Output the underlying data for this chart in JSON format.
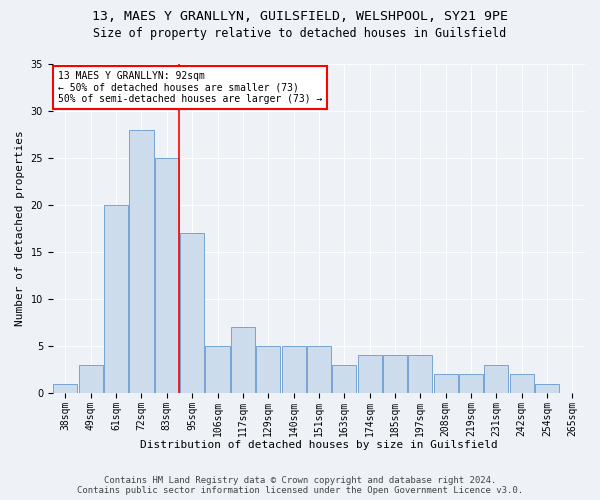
{
  "title1": "13, MAES Y GRANLLYN, GUILSFIELD, WELSHPOOL, SY21 9PE",
  "title2": "Size of property relative to detached houses in Guilsfield",
  "xlabel": "Distribution of detached houses by size in Guilsfield",
  "ylabel": "Number of detached properties",
  "categories": [
    "38sqm",
    "49sqm",
    "61sqm",
    "72sqm",
    "83sqm",
    "95sqm",
    "106sqm",
    "117sqm",
    "129sqm",
    "140sqm",
    "151sqm",
    "163sqm",
    "174sqm",
    "185sqm",
    "197sqm",
    "208sqm",
    "219sqm",
    "231sqm",
    "242sqm",
    "254sqm",
    "265sqm"
  ],
  "values": [
    1,
    3,
    20,
    28,
    25,
    17,
    5,
    7,
    5,
    5,
    5,
    3,
    4,
    4,
    4,
    2,
    2,
    3,
    2,
    1,
    0
  ],
  "bar_color": "#ccdcec",
  "bar_edge_color": "#6699cc",
  "vline_color": "red",
  "annotation_line1": "13 MAES Y GRANLLYN: 92sqm",
  "annotation_line2": "← 50% of detached houses are smaller (73)",
  "annotation_line3": "50% of semi-detached houses are larger (73) →",
  "annotation_box_color": "white",
  "annotation_box_edge": "red",
  "ylim": [
    0,
    35
  ],
  "yticks": [
    0,
    5,
    10,
    15,
    20,
    25,
    30,
    35
  ],
  "footer1": "Contains HM Land Registry data © Crown copyright and database right 2024.",
  "footer2": "Contains public sector information licensed under the Open Government Licence v3.0.",
  "background_color": "#eef2f7",
  "title1_fontsize": 9.5,
  "title2_fontsize": 8.5,
  "xlabel_fontsize": 8,
  "ylabel_fontsize": 8,
  "tick_fontsize": 7,
  "annotation_fontsize": 7,
  "footer_fontsize": 6.5
}
